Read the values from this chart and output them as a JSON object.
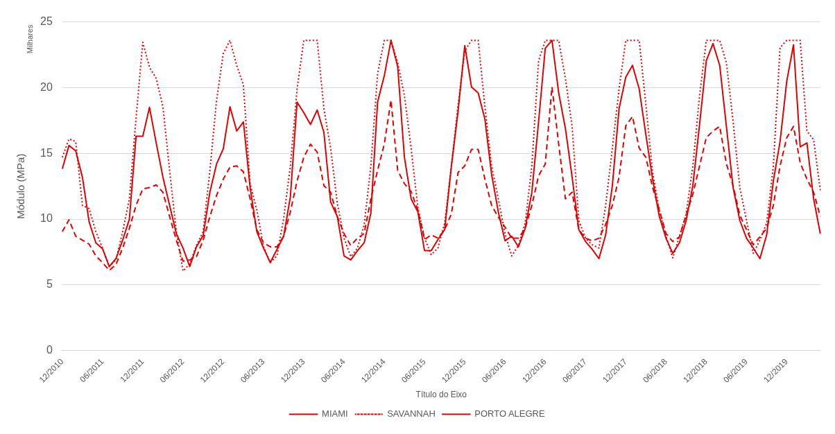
{
  "chart_data": {
    "type": "line",
    "xlabel": "Título do Eixo",
    "ylabel": "Módulo (MPa)",
    "annotations": [
      "Milhares"
    ],
    "categories": [
      "12/2010",
      null,
      null,
      null,
      null,
      null,
      "06/2011",
      null,
      null,
      null,
      null,
      null,
      "12/2011",
      null,
      null,
      null,
      null,
      null,
      "06/2012",
      null,
      null,
      null,
      null,
      null,
      "12/2012",
      null,
      null,
      null,
      null,
      null,
      "06/2013",
      null,
      null,
      null,
      null,
      null,
      "12/2013",
      null,
      null,
      null,
      null,
      null,
      "06/2014",
      null,
      null,
      null,
      null,
      null,
      "12/2014",
      null,
      null,
      null,
      null,
      null,
      "06/2015",
      null,
      null,
      null,
      null,
      null,
      "12/2015",
      null,
      null,
      null,
      null,
      null,
      "06/2016",
      null,
      null,
      null,
      null,
      null,
      "12/2016",
      null,
      null,
      null,
      null,
      null,
      "06/2017",
      null,
      null,
      null,
      null,
      null,
      "12/2017",
      null,
      null,
      null,
      null,
      null,
      "06/2018",
      null,
      null,
      null,
      null,
      null,
      "12/2018",
      null,
      null,
      null,
      null,
      null,
      "06/2019",
      null,
      null,
      null,
      null,
      null,
      "12/2019",
      null,
      null,
      null,
      null,
      null
    ],
    "series": [
      {
        "name": "MIAMI",
        "color": "#e00000",
        "line_style": "dashed",
        "values": [
          9.05,
          9.95,
          8.7,
          8.4,
          8.1,
          7.2,
          6.7,
          6.1,
          6.55,
          7.8,
          9.3,
          11.05,
          12.3,
          12.4,
          12.6,
          12.05,
          10.2,
          8.4,
          6.8,
          6.9,
          7.15,
          8.4,
          10.2,
          11.8,
          13.05,
          13.95,
          14.05,
          13.6,
          11.55,
          9.2,
          8.2,
          7.9,
          7.9,
          8.7,
          10.55,
          12.9,
          14.7,
          15.7,
          15.1,
          12.55,
          12.05,
          10.2,
          8.9,
          8.0,
          8.55,
          8.9,
          11.55,
          13.7,
          15.7,
          19.05,
          13.7,
          12.7,
          12.1,
          10.7,
          8.45,
          8.8,
          8.55,
          9.2,
          10.4,
          13.55,
          14.05,
          15.3,
          15.3,
          13.05,
          11.05,
          10.15,
          9.4,
          8.55,
          8.55,
          9.3,
          11.05,
          13.3,
          14.2,
          20.05,
          15.7,
          11.55,
          12.05,
          9.2,
          8.55,
          8.35,
          8.55,
          9.6,
          11.05,
          13.2,
          17.1,
          17.8,
          15.4,
          14.7,
          12.4,
          10.7,
          8.9,
          8.3,
          8.65,
          10.3,
          11.9,
          14.05,
          16.2,
          16.7,
          17.05,
          14.2,
          12.55,
          10.3,
          9.2,
          8.05,
          8.65,
          9.3,
          11.05,
          14.05,
          16.2,
          17.05,
          14.3,
          13.05,
          12.05,
          10.2
        ]
      },
      {
        "name": "SAVANNAH",
        "color": "#e00000",
        "line_style": "dotted",
        "values": [
          14.7,
          16.1,
          15.9,
          11.05,
          10.8,
          9.05,
          7.8,
          6.4,
          6.9,
          9.05,
          11.55,
          17.7,
          23.45,
          21.55,
          20.7,
          18.55,
          13.7,
          9.05,
          6.05,
          6.6,
          8.0,
          9.05,
          13.7,
          19.05,
          22.6,
          23.6,
          21.7,
          20.2,
          12.7,
          10.7,
          7.9,
          6.7,
          7.2,
          10.05,
          14.05,
          19.9,
          23.6,
          23.6,
          23.6,
          18.4,
          15.4,
          11.2,
          8.55,
          7.15,
          7.8,
          9.55,
          14.05,
          21.05,
          23.6,
          23.6,
          21.9,
          19.4,
          15.4,
          10.9,
          8.55,
          7.3,
          7.8,
          9.7,
          14.05,
          18.7,
          22.8,
          23.6,
          23.6,
          18.55,
          14.05,
          11.55,
          8.9,
          7.2,
          8.0,
          9.7,
          14.05,
          22.05,
          23.6,
          23.6,
          23.6,
          20.7,
          17.05,
          9.9,
          8.55,
          8.05,
          7.8,
          11.05,
          15.4,
          19.9,
          23.6,
          23.6,
          23.6,
          18.7,
          13.55,
          10.7,
          8.7,
          7.05,
          8.7,
          10.4,
          14.05,
          19.4,
          23.6,
          23.6,
          23.6,
          21.9,
          17.4,
          12.4,
          9.9,
          7.4,
          8.4,
          9.7,
          14.05,
          23.05,
          23.6,
          23.6,
          23.6,
          16.7,
          16.05,
          12.2
        ]
      },
      {
        "name": "PORTO ALEGRE",
        "color": "#e00000",
        "line_style": "solid",
        "values": [
          13.83,
          15.6,
          15.2,
          13.2,
          9.8,
          8.2,
          7.75,
          6.4,
          7.0,
          8.4,
          10.0,
          16.3,
          16.3,
          18.5,
          15.8,
          13.2,
          11.05,
          8.9,
          7.8,
          6.4,
          7.9,
          8.75,
          12.05,
          14.2,
          15.35,
          18.55,
          16.7,
          17.4,
          12.4,
          9.05,
          7.8,
          6.7,
          7.7,
          8.7,
          11.7,
          18.9,
          18.1,
          17.2,
          18.3,
          16.6,
          11.3,
          10.2,
          7.2,
          6.9,
          7.6,
          8.2,
          10.45,
          18.9,
          20.9,
          23.6,
          21.6,
          14.7,
          11.55,
          10.55,
          7.6,
          7.6,
          8.45,
          9.2,
          14.0,
          18.2,
          23.2,
          20.05,
          19.6,
          17.6,
          13.4,
          10.55,
          8.35,
          8.7,
          7.9,
          9.3,
          12.05,
          17.4,
          23.0,
          23.6,
          19.6,
          16.9,
          13.2,
          9.2,
          8.3,
          7.7,
          7.0,
          8.8,
          12.55,
          18.4,
          20.8,
          21.7,
          19.9,
          16.4,
          13.05,
          10.2,
          8.55,
          7.4,
          8.2,
          9.9,
          12.55,
          17.2,
          22.05,
          23.35,
          21.7,
          17.05,
          12.4,
          9.9,
          8.55,
          7.8,
          7.0,
          8.8,
          12.9,
          15.9,
          20.5,
          23.25,
          15.5,
          15.8,
          11.55,
          8.9
        ]
      }
    ],
    "ylim": [
      0,
      25
    ],
    "yticks": [
      0,
      5,
      10,
      15,
      20,
      25
    ],
    "grid": "y",
    "legend": "bottom"
  }
}
